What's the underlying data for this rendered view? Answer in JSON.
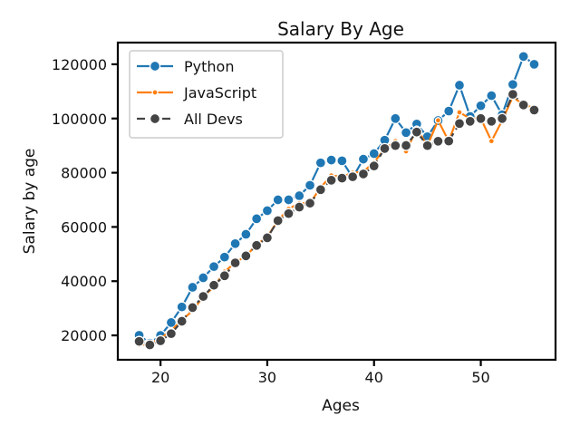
{
  "chart_data": {
    "type": "line",
    "title": "Salary By Age",
    "xlabel": "Ages",
    "ylabel": "Salary by age",
    "xlim": [
      16,
      57
    ],
    "ylim": [
      11000,
      128000
    ],
    "xticks": [
      20,
      30,
      40,
      50
    ],
    "yticks": [
      20000,
      40000,
      60000,
      80000,
      100000,
      120000
    ],
    "grid": false,
    "legend_position": "top-left",
    "x": [
      18,
      19,
      20,
      21,
      22,
      23,
      24,
      25,
      26,
      27,
      28,
      29,
      30,
      31,
      32,
      33,
      34,
      35,
      36,
      37,
      38,
      39,
      40,
      41,
      42,
      43,
      44,
      45,
      46,
      47,
      48,
      49,
      50,
      51,
      52,
      53,
      54,
      55
    ],
    "series": [
      {
        "name": "Python",
        "color": "#1f77b4",
        "line_style": "solid",
        "marker": "circle-large",
        "values": [
          20046,
          17100,
          20000,
          24744,
          30500,
          37732,
          41247,
          45372,
          48876,
          53850,
          57287,
          63016,
          65998,
          70003,
          70000,
          71496,
          75370,
          83640,
          84666,
          84392,
          78254,
          85000,
          87038,
          91991,
          100000,
          94796,
          97962,
          93302,
          99240,
          102736,
          112285,
          100771,
          104708,
          108423,
          101407,
          112542,
          122870,
          120000
        ]
      },
      {
        "name": "JavaScript",
        "color": "#ff7f0e",
        "line_style": "solid",
        "marker": "circle-small",
        "values": [
          16446,
          16791,
          18942,
          21780,
          25704,
          29000,
          34372,
          37810,
          43515,
          46823,
          49293,
          53437,
          56373,
          62375,
          66674,
          68745,
          68746,
          74583,
          79000,
          78508,
          79996,
          80403,
          83820,
          88833,
          91660,
          87892,
          96243,
          90000,
          99313,
          91660,
          102264,
          100000,
          100000,
          91660,
          99240,
          108000,
          105000,
          104000
        ]
      },
      {
        "name": "All Devs",
        "color": "#444444",
        "line_style": "dashed",
        "marker": "circle-large",
        "values": [
          17784,
          16500,
          18012,
          20628,
          25206,
          30252,
          34368,
          38496,
          42000,
          46752,
          49320,
          53200,
          56000,
          62316,
          64928,
          67317,
          68748,
          73752,
          77232,
          78000,
          78508,
          79536,
          82488,
          88935,
          90000,
          90056,
          95000,
          90000,
          91633,
          91660,
          98150,
          98964,
          100000,
          98988,
          100000,
          108923,
          105000,
          103117
        ]
      }
    ]
  }
}
